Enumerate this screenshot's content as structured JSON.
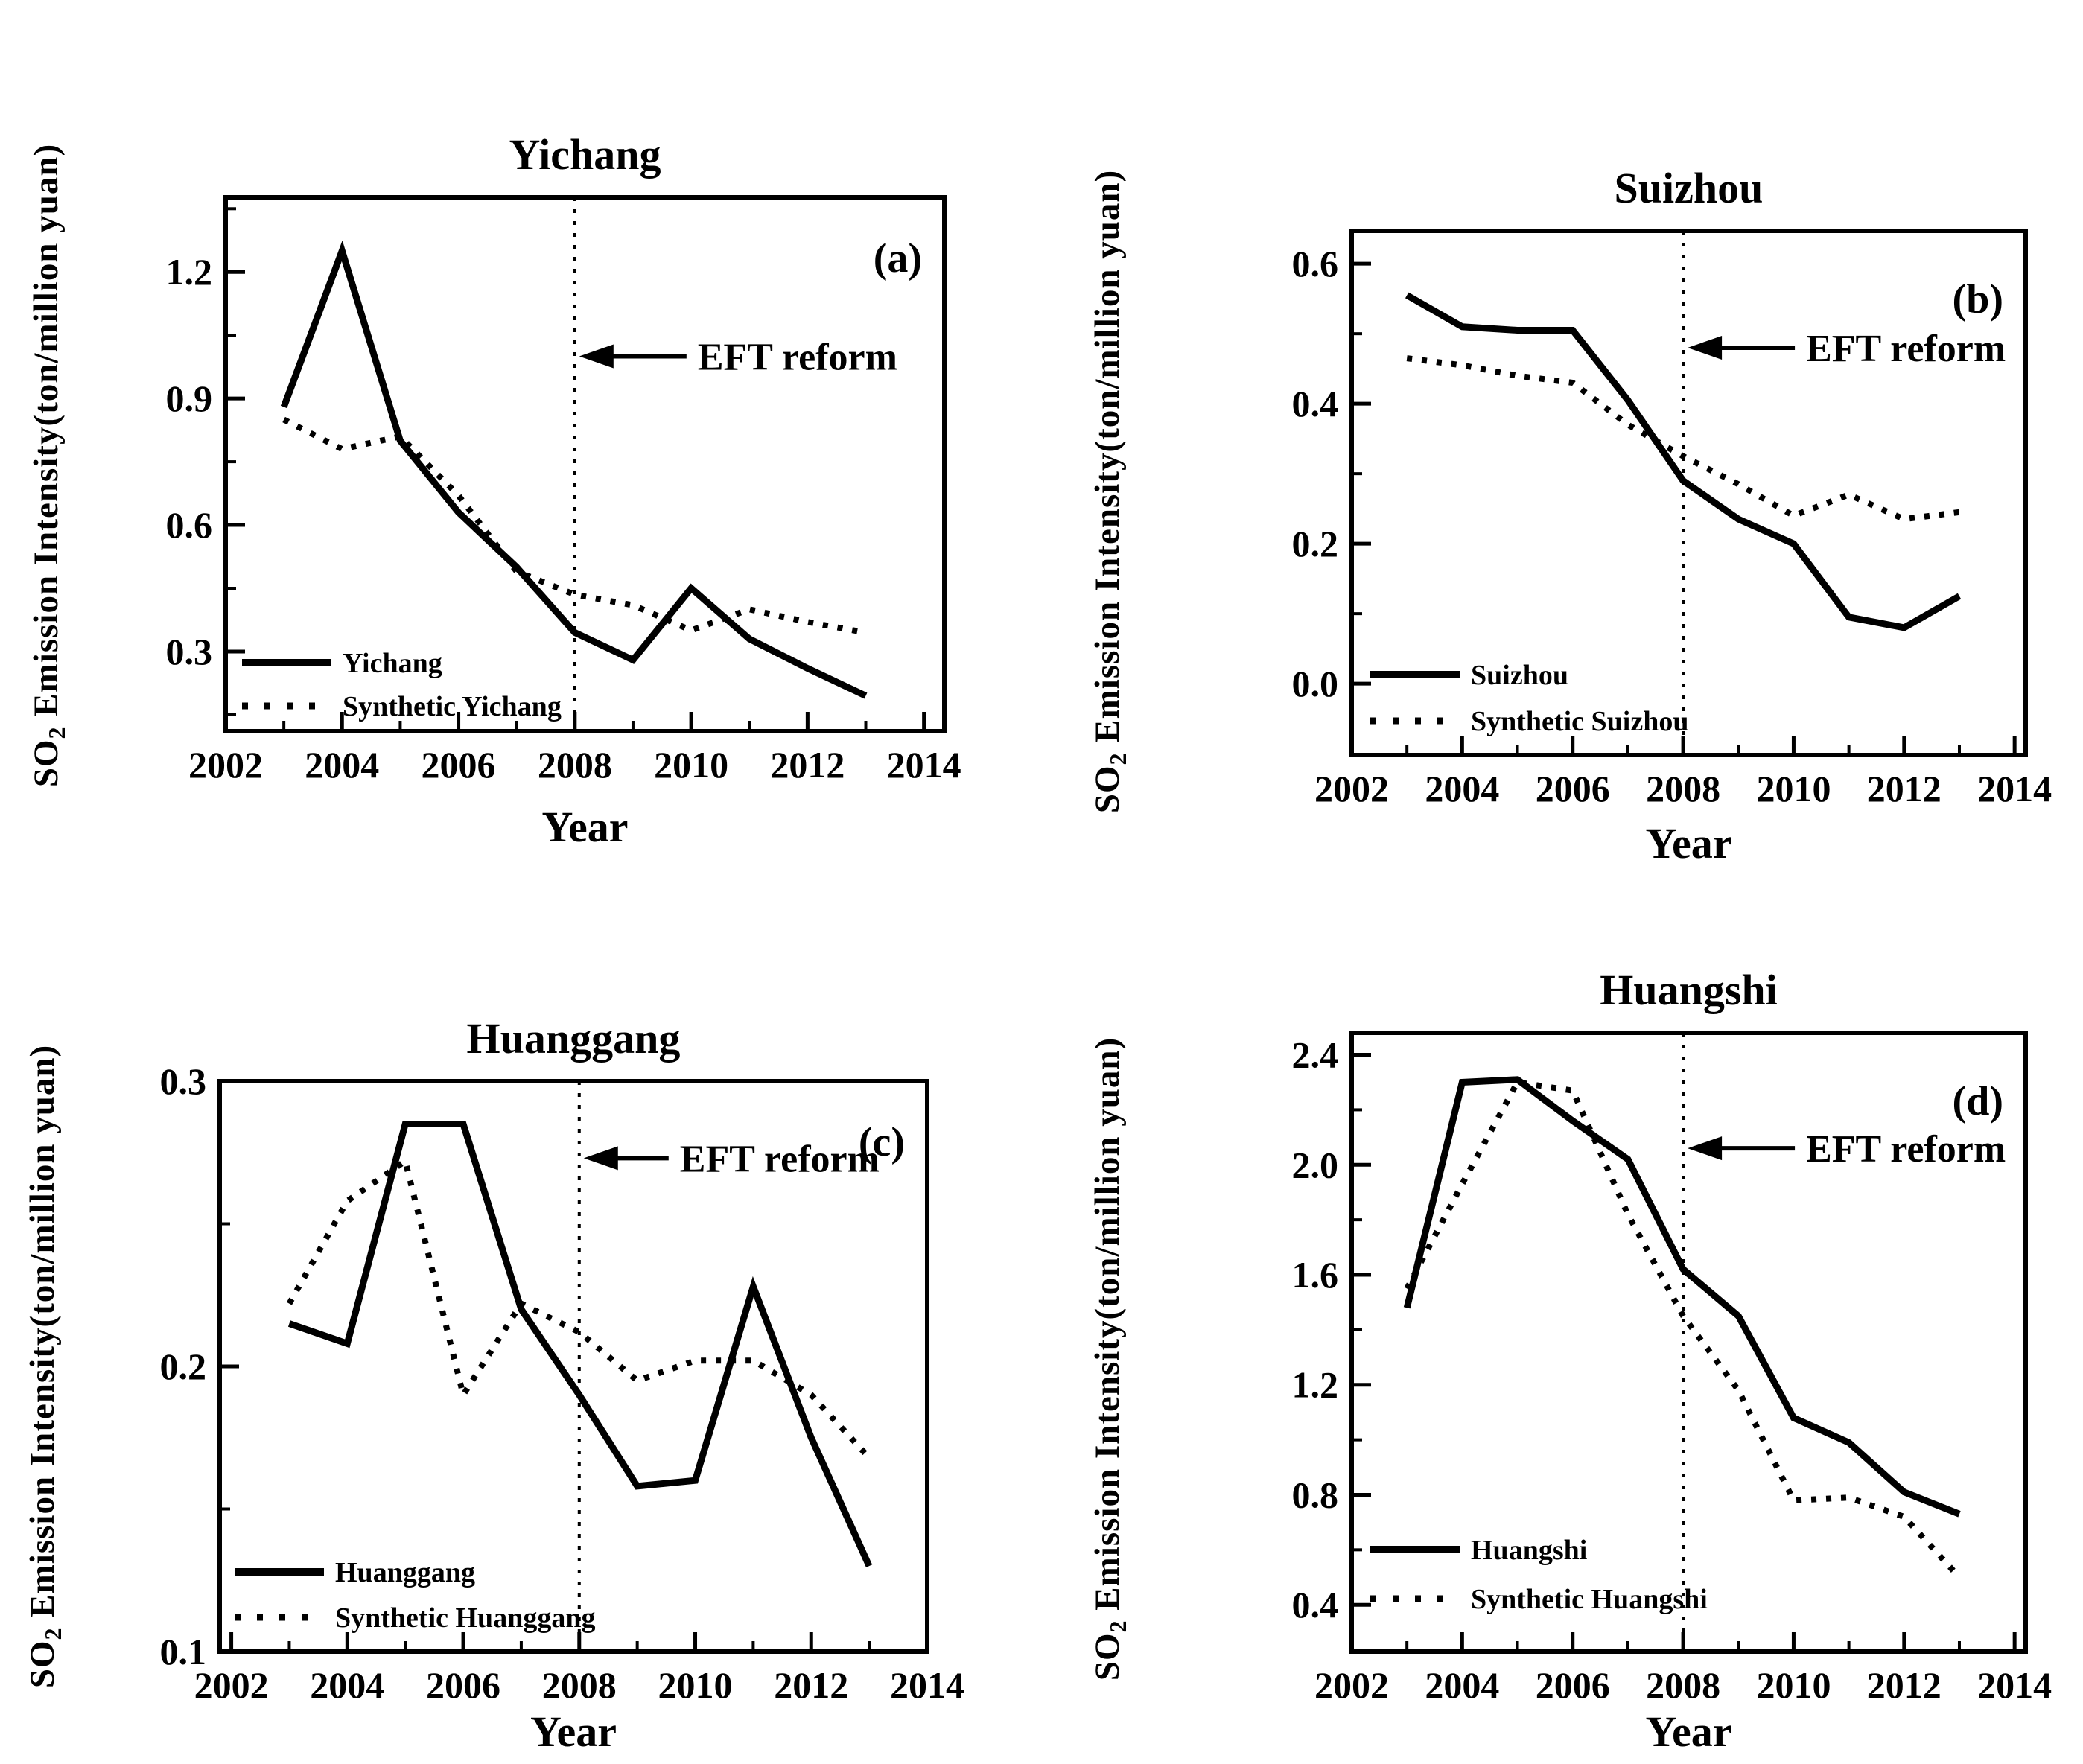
{
  "figure": {
    "ylabel_pre": "SO",
    "ylabel_sub": "2",
    "ylabel_post": " Emission Intensity(ton/million yuan)",
    "xlabel": "Year"
  },
  "chart_data": [
    {
      "type": "line",
      "panel_letter": "(a)",
      "title": "Yichang",
      "xlabel": "Year",
      "x": [
        2003,
        2004,
        2005,
        2006,
        2007,
        2008,
        2009,
        2010,
        2011,
        2012,
        2013
      ],
      "series": [
        {
          "name": "Yichang",
          "style": "solid",
          "values": [
            0.88,
            1.25,
            0.8,
            0.63,
            0.5,
            0.345,
            0.28,
            0.45,
            0.33,
            0.26,
            0.195
          ]
        },
        {
          "name": "Synthetic Yichang",
          "style": "dotted",
          "values": [
            0.85,
            0.78,
            0.81,
            0.67,
            0.49,
            0.435,
            0.41,
            0.35,
            0.4,
            0.37,
            0.345
          ]
        }
      ],
      "xlim": [
        2002.0,
        2014.35
      ],
      "ylim": [
        0.111,
        1.377
      ],
      "xticks": [
        2002,
        2004,
        2006,
        2008,
        2010,
        2012,
        2014
      ],
      "yticks": [
        0.3,
        0.6,
        0.9,
        1.2
      ],
      "grid": false,
      "legend_position": "bottom-left",
      "annotation": {
        "label": "EFT reform",
        "x": 2008,
        "arrow_y": 1.0
      }
    },
    {
      "type": "line",
      "panel_letter": "(b)",
      "title": "Suizhou",
      "xlabel": "Year",
      "x": [
        2003,
        2004,
        2005,
        2006,
        2007,
        2008,
        2009,
        2010,
        2011,
        2012,
        2013
      ],
      "series": [
        {
          "name": "Suizhou",
          "style": "solid",
          "values": [
            0.555,
            0.51,
            0.505,
            0.505,
            0.405,
            0.29,
            0.235,
            0.2,
            0.095,
            0.08,
            0.125
          ]
        },
        {
          "name": "Synthetic Suizhou",
          "style": "dotted",
          "values": [
            0.465,
            0.455,
            0.44,
            0.43,
            0.37,
            0.325,
            0.285,
            0.24,
            0.27,
            0.235,
            0.245
          ]
        }
      ],
      "xlim": [
        2002.0,
        2014.2
      ],
      "ylim": [
        -0.102,
        0.647
      ],
      "xticks": [
        2002,
        2004,
        2006,
        2008,
        2010,
        2012,
        2014
      ],
      "yticks": [
        0.0,
        0.2,
        0.4,
        0.6
      ],
      "grid": false,
      "legend_position": "bottom-left",
      "annotation": {
        "label": "EFT reform",
        "x": 2008,
        "arrow_y": 0.48
      }
    },
    {
      "type": "line",
      "panel_letter": "(c)",
      "title": "Huanggang",
      "xlabel": "Year",
      "x": [
        2003,
        2004,
        2005,
        2006,
        2007,
        2008,
        2009,
        2010,
        2011,
        2012,
        2013
      ],
      "series": [
        {
          "name": "Huanggang",
          "style": "solid",
          "values": [
            0.215,
            0.208,
            0.285,
            0.285,
            0.22,
            0.19,
            0.158,
            0.16,
            0.228,
            0.175,
            0.13
          ]
        },
        {
          "name": "Synthetic Huanggang",
          "style": "dotted",
          "values": [
            0.222,
            0.258,
            0.272,
            0.19,
            0.222,
            0.212,
            0.195,
            0.202,
            0.202,
            0.19,
            0.168
          ]
        }
      ],
      "xlim": [
        2001.8,
        2014.0
      ],
      "ylim": [
        0.1,
        0.3
      ],
      "xticks": [
        2002,
        2004,
        2006,
        2008,
        2010,
        2012,
        2014
      ],
      "yticks": [
        0.1,
        0.2,
        0.3
      ],
      "grid": false,
      "legend_position": "bottom-left",
      "annotation": {
        "label": "EFT reform",
        "x": 2008,
        "arrow_y": 0.273
      }
    },
    {
      "type": "line",
      "panel_letter": "(d)",
      "title": "Huangshi",
      "xlabel": "Year",
      "x": [
        2003,
        2004,
        2005,
        2006,
        2007,
        2008,
        2009,
        2010,
        2011,
        2012,
        2013
      ],
      "series": [
        {
          "name": "Huangshi",
          "style": "solid",
          "values": [
            1.48,
            2.3,
            2.31,
            2.16,
            2.02,
            1.62,
            1.45,
            1.08,
            0.99,
            0.81,
            0.73
          ]
        },
        {
          "name": "Synthetic Huangshi",
          "style": "dotted",
          "values": [
            1.55,
            1.93,
            2.3,
            2.27,
            1.82,
            1.45,
            1.18,
            0.78,
            0.79,
            0.72,
            0.5
          ]
        }
      ],
      "xlim": [
        2002.0,
        2014.2
      ],
      "ylim": [
        0.23,
        2.48
      ],
      "xticks": [
        2002,
        2004,
        2006,
        2008,
        2010,
        2012,
        2014
      ],
      "yticks": [
        0.4,
        0.8,
        1.2,
        1.6,
        2.0,
        2.4
      ],
      "grid": false,
      "legend_position": "bottom-left",
      "annotation": {
        "label": "EFT reform",
        "x": 2008,
        "arrow_y": 2.06
      }
    }
  ]
}
